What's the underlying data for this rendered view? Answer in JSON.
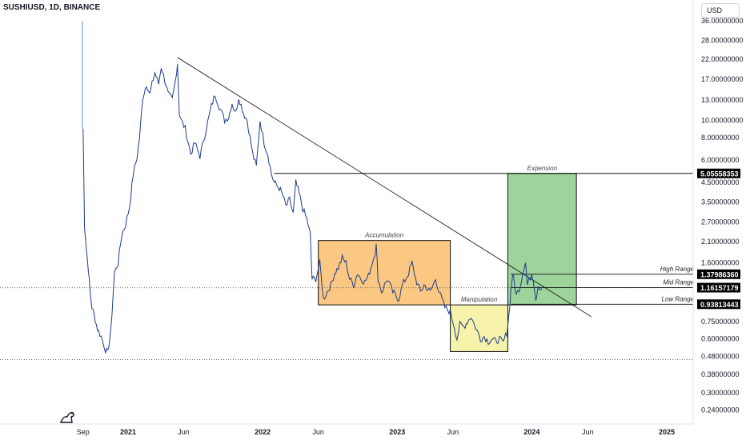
{
  "header": {
    "symbol_title": "SUSHIUSD, 1D, BINANCE",
    "currency": "USD"
  },
  "chart_data": {
    "type": "line",
    "title": "SUSHIUSD, 1D, BINANCE",
    "y_scale": "log",
    "y_ticks": [
      "36.00000000",
      "28.00000000",
      "22.00000000",
      "17.00000000",
      "13.00000000",
      "10.00000000",
      "8.00000000",
      "6.00000000",
      "4.50000000",
      "3.50000000",
      "2.70000000",
      "2.10000000",
      "1.60000000",
      "0.75000000",
      "0.60000000",
      "0.48000000",
      "0.38000000",
      "0.30000000",
      "0.24000000"
    ],
    "y_tick_values": [
      36,
      28,
      22,
      17,
      13,
      10,
      8,
      6,
      4.5,
      3.5,
      2.7,
      2.1,
      1.6,
      0.75,
      0.6,
      0.48,
      0.38,
      0.3,
      0.24
    ],
    "x_ticks": [
      "Sep",
      "2021",
      "Jun",
      "2022",
      "Jun",
      "2023",
      "Jun",
      "2024",
      "Jun",
      "2025"
    ],
    "x_tick_dates": [
      "2020-09-01",
      "2021-01-01",
      "2021-06-01",
      "2022-01-01",
      "2022-06-01",
      "2023-01-01",
      "2023-06-01",
      "2024-01-01",
      "2024-06-01",
      "2025-01-01"
    ],
    "price_series": [
      [
        "2020-09-01",
        9.0
      ],
      [
        "2020-09-05",
        2.6
      ],
      [
        "2020-09-10",
        1.9
      ],
      [
        "2020-09-15",
        1.5
      ],
      [
        "2020-09-20",
        1.1
      ],
      [
        "2020-09-25",
        0.9
      ],
      [
        "2020-10-01",
        0.82
      ],
      [
        "2020-10-10",
        0.68
      ],
      [
        "2020-10-20",
        0.62
      ],
      [
        "2020-11-01",
        0.52
      ],
      [
        "2020-11-06",
        0.5
      ],
      [
        "2020-11-15",
        0.65
      ],
      [
        "2020-11-25",
        1.4
      ],
      [
        "2020-12-05",
        1.6
      ],
      [
        "2020-12-15",
        2.3
      ],
      [
        "2020-12-25",
        2.6
      ],
      [
        "2021-01-05",
        3.3
      ],
      [
        "2021-01-15",
        5.0
      ],
      [
        "2021-01-25",
        6.2
      ],
      [
        "2021-02-01",
        8.0
      ],
      [
        "2021-02-10",
        13.5
      ],
      [
        "2021-02-20",
        16.0
      ],
      [
        "2021-03-01",
        14.0
      ],
      [
        "2021-03-10",
        17.0
      ],
      [
        "2021-03-15",
        18.5
      ],
      [
        "2021-03-25",
        16.0
      ],
      [
        "2021-04-01",
        20.0
      ],
      [
        "2021-04-10",
        17.0
      ],
      [
        "2021-04-20",
        14.0
      ],
      [
        "2021-05-01",
        13.0
      ],
      [
        "2021-05-10",
        17.0
      ],
      [
        "2021-05-15",
        21.0
      ],
      [
        "2021-05-20",
        11.0
      ],
      [
        "2021-05-25",
        10.0
      ],
      [
        "2021-06-05",
        9.0
      ],
      [
        "2021-06-20",
        6.5
      ],
      [
        "2021-07-01",
        7.5
      ],
      [
        "2021-07-15",
        6.3
      ],
      [
        "2021-08-01",
        9.0
      ],
      [
        "2021-08-15",
        12.0
      ],
      [
        "2021-08-25",
        14.0
      ],
      [
        "2021-09-05",
        12.0
      ],
      [
        "2021-09-20",
        10.0
      ],
      [
        "2021-10-01",
        10.5
      ],
      [
        "2021-10-10",
        12.5
      ],
      [
        "2021-10-20",
        11.0
      ],
      [
        "2021-10-28",
        13.5
      ],
      [
        "2021-11-10",
        11.0
      ],
      [
        "2021-11-20",
        10.0
      ],
      [
        "2021-11-28",
        8.0
      ],
      [
        "2021-12-05",
        6.5
      ],
      [
        "2021-12-15",
        5.5
      ],
      [
        "2021-12-25",
        10.0
      ],
      [
        "2022-01-05",
        7.5
      ],
      [
        "2022-01-15",
        6.5
      ],
      [
        "2022-01-25",
        5.0
      ],
      [
        "2022-02-01",
        4.5
      ],
      [
        "2022-02-15",
        4.2
      ],
      [
        "2022-02-25",
        3.8
      ],
      [
        "2022-03-05",
        3.3
      ],
      [
        "2022-03-15",
        3.6
      ],
      [
        "2022-03-25",
        3.0
      ],
      [
        "2022-04-01",
        4.5
      ],
      [
        "2022-04-10",
        3.9
      ],
      [
        "2022-04-20",
        3.2
      ],
      [
        "2022-05-01",
        2.8
      ],
      [
        "2022-05-10",
        2.3
      ],
      [
        "2022-05-15",
        1.3
      ],
      [
        "2022-05-25",
        1.3
      ],
      [
        "2022-06-05",
        1.6
      ],
      [
        "2022-06-15",
        1.0
      ],
      [
        "2022-06-25",
        1.1
      ],
      [
        "2022-07-05",
        1.2
      ],
      [
        "2022-07-15",
        1.4
      ],
      [
        "2022-07-25",
        1.5
      ],
      [
        "2022-08-05",
        1.7
      ],
      [
        "2022-08-15",
        1.6
      ],
      [
        "2022-08-25",
        1.3
      ],
      [
        "2022-09-05",
        1.2
      ],
      [
        "2022-09-15",
        1.4
      ],
      [
        "2022-09-25",
        1.3
      ],
      [
        "2022-10-05",
        1.25
      ],
      [
        "2022-10-15",
        1.35
      ],
      [
        "2022-10-25",
        1.6
      ],
      [
        "2022-11-01",
        1.8
      ],
      [
        "2022-11-05",
        2.0
      ],
      [
        "2022-11-10",
        1.3
      ],
      [
        "2022-11-20",
        1.1
      ],
      [
        "2022-12-05",
        1.3
      ],
      [
        "2022-12-20",
        1.1
      ],
      [
        "2023-01-05",
        1.0
      ],
      [
        "2023-01-15",
        1.2
      ],
      [
        "2023-02-01",
        1.4
      ],
      [
        "2023-02-10",
        1.6
      ],
      [
        "2023-02-20",
        1.3
      ],
      [
        "2023-03-05",
        1.1
      ],
      [
        "2023-03-15",
        1.2
      ],
      [
        "2023-04-01",
        1.1
      ],
      [
        "2023-04-15",
        1.3
      ],
      [
        "2023-04-25",
        1.1
      ],
      [
        "2023-05-10",
        0.9
      ],
      [
        "2023-05-25",
        0.85
      ],
      [
        "2023-06-05",
        0.7
      ],
      [
        "2023-06-12",
        0.6
      ],
      [
        "2023-06-20",
        0.72
      ],
      [
        "2023-07-01",
        0.7
      ],
      [
        "2023-07-10",
        0.75
      ],
      [
        "2023-07-20",
        0.8
      ],
      [
        "2023-08-01",
        0.7
      ],
      [
        "2023-08-15",
        0.6
      ],
      [
        "2023-08-25",
        0.62
      ],
      [
        "2023-09-05",
        0.58
      ],
      [
        "2023-09-15",
        0.6
      ],
      [
        "2023-09-25",
        0.58
      ],
      [
        "2023-10-05",
        0.6
      ],
      [
        "2023-10-15",
        0.57
      ],
      [
        "2023-10-25",
        0.65
      ],
      [
        "2023-11-01",
        0.85
      ],
      [
        "2023-11-05",
        1.1
      ],
      [
        "2023-11-10",
        1.4
      ],
      [
        "2023-11-15",
        1.2
      ],
      [
        "2023-11-20",
        1.05
      ],
      [
        "2023-12-01",
        1.2
      ],
      [
        "2023-12-10",
        1.5
      ],
      [
        "2023-12-15",
        1.6
      ],
      [
        "2023-12-20",
        1.2
      ],
      [
        "2024-01-01",
        1.4
      ],
      [
        "2024-01-05",
        1.3
      ],
      [
        "2024-01-12",
        1.0
      ],
      [
        "2024-01-18",
        1.2
      ],
      [
        "2024-01-25",
        1.15
      ],
      [
        "2024-01-28",
        1.15
      ]
    ],
    "trendline": {
      "start": [
        "2021-05-15",
        22.5
      ],
      "end": [
        "2024-06-10",
        0.8
      ]
    },
    "ray_lines": [
      {
        "date_start": "2022-02-01",
        "value": 5.05558353
      },
      {
        "date_start": "2023-11-05",
        "value": 1.3798636
      },
      {
        "date_start": "2023-11-05",
        "value": 1.16157179
      },
      {
        "date_start": "2023-11-05",
        "value": 0.93813443
      }
    ],
    "dotted_lines": [
      {
        "value": 1.16
      },
      {
        "value": 0.46
      }
    ],
    "initial_marker": {
      "date": "2020-08-30",
      "value_top": 36,
      "value_bottom": 9
    },
    "boxes": [
      {
        "label": "Accumulation",
        "date_start": "2022-06-01",
        "date_end": "2023-05-25",
        "top": 2.13,
        "bottom": 0.93,
        "fill": "#f9b04f",
        "stroke": "#111111"
      },
      {
        "label": "Manipulation",
        "date_start": "2023-05-25",
        "date_end": "2023-10-28",
        "top": 0.93,
        "bottom": 0.51,
        "fill": "#f4ee88",
        "stroke": "#111111"
      },
      {
        "label": "Expension",
        "date_start": "2023-10-28",
        "date_end": "2024-05-01",
        "top": 5.05558353,
        "bottom": 0.93,
        "fill": "#74c271",
        "stroke": "#111111"
      }
    ],
    "range_labels": [
      {
        "label": "High Range",
        "value": 1.3798636
      },
      {
        "label": "Mid Range",
        "value": 1.16157179
      },
      {
        "label": "Low Range",
        "value": 0.93813443
      }
    ],
    "price_tags": [
      {
        "text": "5.05558353",
        "value": 5.05558353
      },
      {
        "text": "1.37986360",
        "value": 1.3798636
      },
      {
        "text": "1.16157179",
        "value": 1.16157179
      },
      {
        "text": "0.93813443",
        "value": 0.93813443
      }
    ],
    "colors": {
      "price_line": "#1e3a8a",
      "price_tag_bg": "#000000",
      "initial_marker": "#5b8def",
      "grid_border": "#e0e3eb"
    },
    "legend": "none",
    "grid": false
  }
}
